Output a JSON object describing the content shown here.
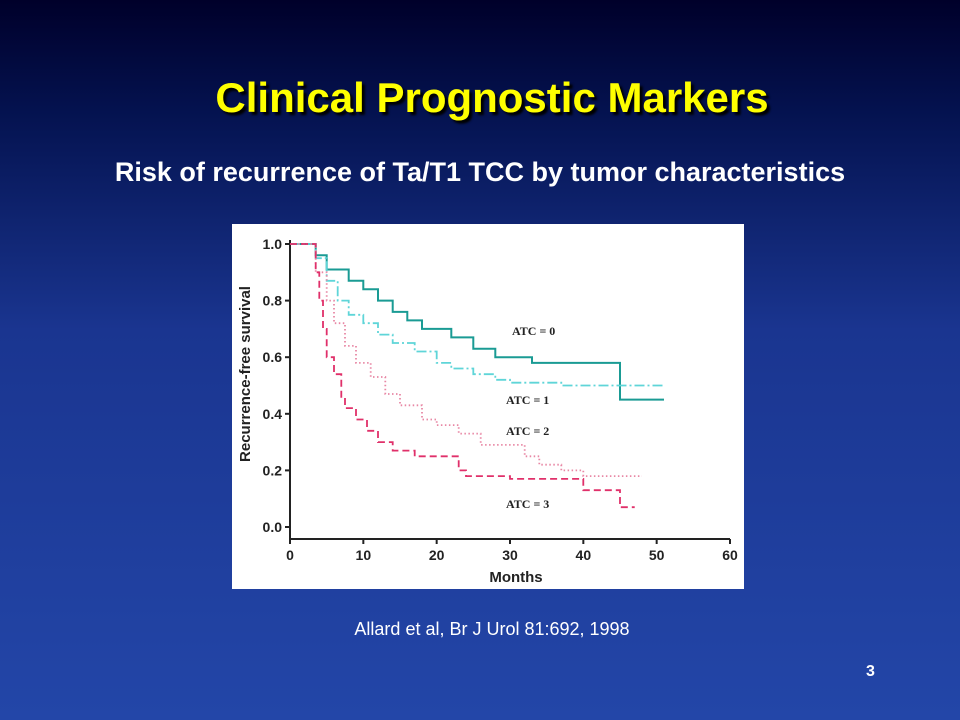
{
  "slide": {
    "title": "Clinical Prognostic Markers",
    "subtitle": "Risk of recurrence of Ta/T1 TCC by tumor characteristics",
    "citation": "Allard et al, Br J Urol 81:692, 1998",
    "page_number": "3"
  },
  "chart_data": {
    "type": "line",
    "title": "",
    "xlabel": "Months",
    "ylabel": "Recurrence-free survival",
    "xlim": [
      0,
      60
    ],
    "ylim": [
      0,
      1
    ],
    "xticks": [
      "0",
      "10",
      "20",
      "30",
      "40",
      "50",
      "60"
    ],
    "yticks": [
      "0.0",
      "0.2",
      "0.4",
      "0.6",
      "0.8",
      "1.0"
    ],
    "grid": false,
    "step": true,
    "series": [
      {
        "name": "ATC = 0",
        "color": "#1a9b94",
        "style": "solid",
        "points": [
          [
            0,
            1.0
          ],
          [
            3.5,
            1.0
          ],
          [
            3.5,
            0.96
          ],
          [
            5,
            0.96
          ],
          [
            5,
            0.91
          ],
          [
            8,
            0.91
          ],
          [
            8,
            0.87
          ],
          [
            10,
            0.87
          ],
          [
            10,
            0.84
          ],
          [
            12,
            0.84
          ],
          [
            12,
            0.8
          ],
          [
            14,
            0.8
          ],
          [
            14,
            0.76
          ],
          [
            16,
            0.76
          ],
          [
            16,
            0.73
          ],
          [
            18,
            0.73
          ],
          [
            18,
            0.7
          ],
          [
            22,
            0.7
          ],
          [
            22,
            0.67
          ],
          [
            25,
            0.67
          ],
          [
            25,
            0.63
          ],
          [
            28,
            0.63
          ],
          [
            28,
            0.6
          ],
          [
            33,
            0.6
          ],
          [
            33,
            0.58
          ],
          [
            45,
            0.58
          ],
          [
            45,
            0.45
          ],
          [
            51,
            0.45
          ]
        ]
      },
      {
        "name": "ATC = 1",
        "color": "#5fd5d8",
        "style": "dash-dot",
        "points": [
          [
            0,
            1.0
          ],
          [
            3.5,
            1.0
          ],
          [
            3.5,
            0.95
          ],
          [
            5,
            0.95
          ],
          [
            5,
            0.87
          ],
          [
            6.5,
            0.87
          ],
          [
            6.5,
            0.8
          ],
          [
            8,
            0.8
          ],
          [
            8,
            0.75
          ],
          [
            10,
            0.75
          ],
          [
            10,
            0.72
          ],
          [
            12,
            0.72
          ],
          [
            12,
            0.68
          ],
          [
            14,
            0.68
          ],
          [
            14,
            0.65
          ],
          [
            17,
            0.65
          ],
          [
            17,
            0.62
          ],
          [
            20,
            0.62
          ],
          [
            20,
            0.58
          ],
          [
            22,
            0.58
          ],
          [
            22,
            0.56
          ],
          [
            25,
            0.56
          ],
          [
            25,
            0.54
          ],
          [
            28,
            0.54
          ],
          [
            28,
            0.52
          ],
          [
            30,
            0.52
          ],
          [
            30,
            0.51
          ],
          [
            37,
            0.51
          ],
          [
            37,
            0.5
          ],
          [
            51,
            0.5
          ]
        ]
      },
      {
        "name": "ATC = 2",
        "color": "#e888a5",
        "style": "dotted",
        "points": [
          [
            0,
            1.0
          ],
          [
            3.5,
            1.0
          ],
          [
            3.5,
            0.9
          ],
          [
            5,
            0.9
          ],
          [
            5,
            0.8
          ],
          [
            6,
            0.8
          ],
          [
            6,
            0.72
          ],
          [
            7.5,
            0.72
          ],
          [
            7.5,
            0.64
          ],
          [
            9,
            0.64
          ],
          [
            9,
            0.58
          ],
          [
            11,
            0.58
          ],
          [
            11,
            0.53
          ],
          [
            13,
            0.53
          ],
          [
            13,
            0.47
          ],
          [
            15,
            0.47
          ],
          [
            15,
            0.43
          ],
          [
            18,
            0.43
          ],
          [
            18,
            0.38
          ],
          [
            20,
            0.38
          ],
          [
            20,
            0.36
          ],
          [
            23,
            0.36
          ],
          [
            23,
            0.33
          ],
          [
            26,
            0.33
          ],
          [
            26,
            0.29
          ],
          [
            32,
            0.29
          ],
          [
            32,
            0.25
          ],
          [
            34,
            0.25
          ],
          [
            34,
            0.22
          ],
          [
            37,
            0.22
          ],
          [
            37,
            0.2
          ],
          [
            40,
            0.2
          ],
          [
            40,
            0.18
          ],
          [
            48,
            0.18
          ]
        ]
      },
      {
        "name": "ATC = 3",
        "color": "#e0306a",
        "style": "dashed",
        "points": [
          [
            0,
            1.0
          ],
          [
            3.5,
            1.0
          ],
          [
            3.5,
            0.9
          ],
          [
            4,
            0.9
          ],
          [
            4,
            0.8
          ],
          [
            4.5,
            0.8
          ],
          [
            4.5,
            0.7
          ],
          [
            5,
            0.7
          ],
          [
            5,
            0.6
          ],
          [
            6,
            0.6
          ],
          [
            6,
            0.54
          ],
          [
            7,
            0.54
          ],
          [
            7,
            0.46
          ],
          [
            7.5,
            0.46
          ],
          [
            7.5,
            0.42
          ],
          [
            9,
            0.42
          ],
          [
            9,
            0.38
          ],
          [
            10.5,
            0.38
          ],
          [
            10.5,
            0.34
          ],
          [
            12,
            0.34
          ],
          [
            12,
            0.3
          ],
          [
            14,
            0.3
          ],
          [
            14,
            0.27
          ],
          [
            17,
            0.27
          ],
          [
            17,
            0.25
          ],
          [
            23,
            0.25
          ],
          [
            23,
            0.2
          ],
          [
            24,
            0.2
          ],
          [
            24,
            0.18
          ],
          [
            30,
            0.18
          ],
          [
            30,
            0.17
          ],
          [
            40,
            0.17
          ],
          [
            40,
            0.13
          ],
          [
            45,
            0.13
          ],
          [
            45,
            0.07
          ],
          [
            47,
            0.07
          ]
        ]
      }
    ],
    "annotations": [
      "ATC = 0",
      "ATC = 1",
      "ATC = 2",
      "ATC = 3"
    ]
  }
}
